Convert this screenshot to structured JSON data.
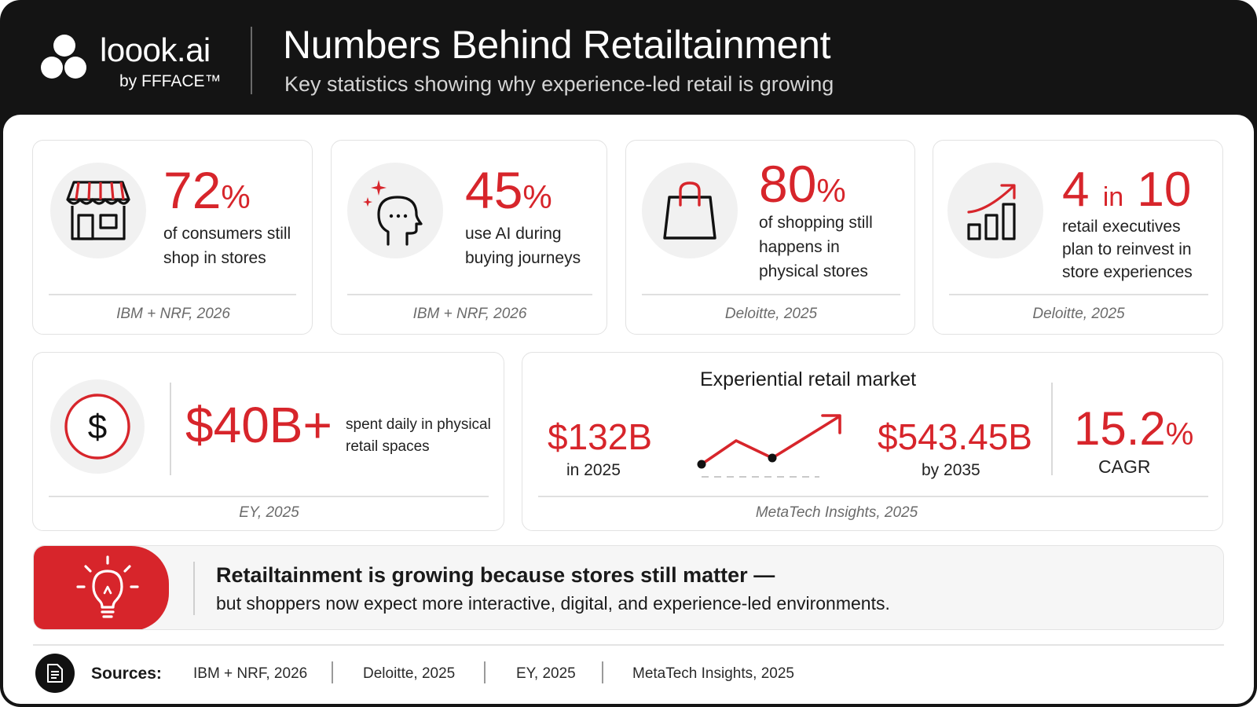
{
  "brand": {
    "name": "loook.ai",
    "byline": "by FFFACE™"
  },
  "header": {
    "title": "Numbers Behind Retailtainment",
    "subtitle": "Key statistics showing why experience-led retail is growing"
  },
  "accent_color": "#d7252b",
  "stats": [
    {
      "icon": "storefront-icon",
      "value": "72",
      "unit": "%",
      "description": "of consumers still shop in stores",
      "source": "IBM + NRF, 2026"
    },
    {
      "icon": "ai-head-icon",
      "value": "45",
      "unit": "%",
      "description": "use AI during buying journeys",
      "source": "IBM + NRF, 2026"
    },
    {
      "icon": "shopping-bag-icon",
      "value": "80",
      "unit": "%",
      "description": "of shopping still happens in physical stores",
      "source": "Deloitte, 2025"
    },
    {
      "icon": "growth-chart-icon",
      "value": "4",
      "unit_mid": "in",
      "value2": "10",
      "description": "retail executives plan to reinvest in store experiences",
      "source": "Deloitte, 2025"
    }
  ],
  "spend": {
    "icon": "dollar-icon",
    "value": "$40B+",
    "description": "spent daily in physical retail spaces",
    "source": "EY, 2025"
  },
  "market": {
    "title": "Experiential retail market",
    "start_value": "$132B",
    "start_caption": "in 2025",
    "end_value": "$543.45B",
    "end_caption": "by 2035",
    "cagr_value": "15.2",
    "cagr_unit": "%",
    "cagr_label": "CAGR",
    "source": "MetaTech Insights, 2025"
  },
  "banner": {
    "icon": "lightbulb-icon",
    "headline": "Retailtainment is growing because stores still matter —",
    "body": "but shoppers now expect more interactive, digital, and experience-led environments."
  },
  "sources": {
    "icon": "document-icon",
    "label": "Sources:",
    "items": [
      "IBM + NRF, 2026",
      "Deloitte, 2025",
      "EY, 2025",
      "MetaTech Insights, 2025"
    ]
  }
}
